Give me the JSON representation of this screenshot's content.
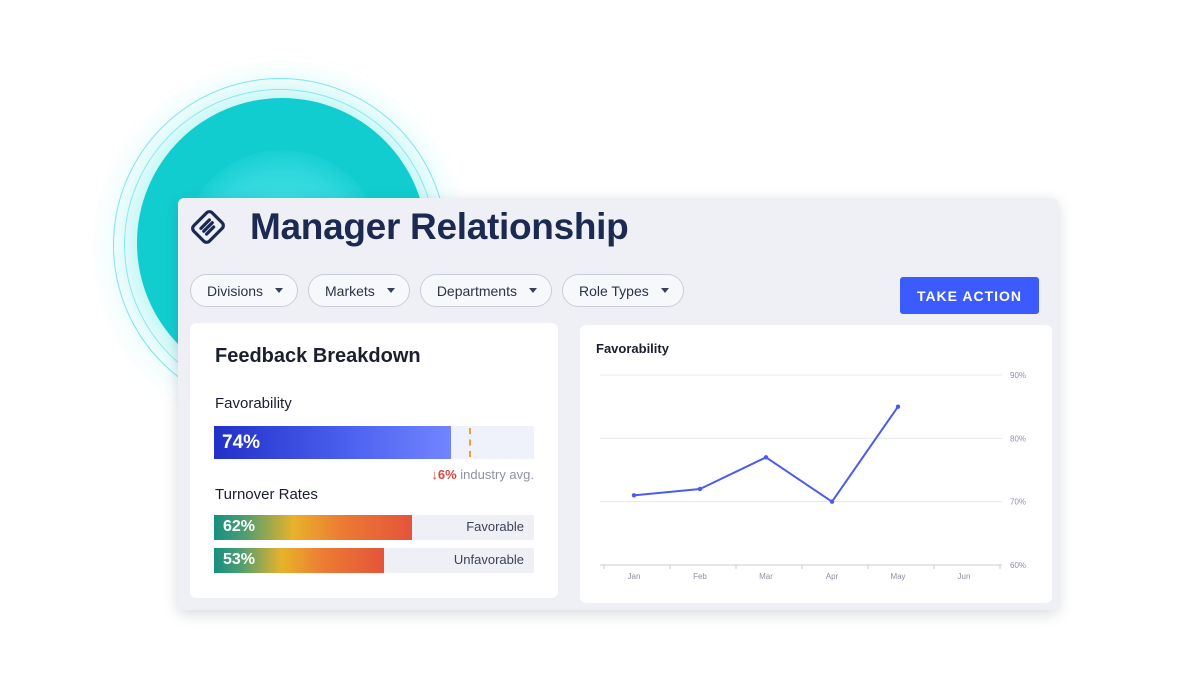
{
  "header": {
    "title": "Manager Relationship",
    "logo_icon": "handshake-icon"
  },
  "filters": [
    {
      "label": "Divisions"
    },
    {
      "label": "Markets"
    },
    {
      "label": "Departments"
    },
    {
      "label": "Role Types"
    }
  ],
  "take_action": {
    "label": "TAKE ACTION",
    "color": "#3b5bff"
  },
  "feedback": {
    "title": "Feedback Breakdown",
    "favorability_label": "Favorability",
    "favorability_value": "74%",
    "favorability_percent": 74,
    "industry_avg_percent": 80,
    "industry_delta": "↓6%",
    "industry_label": "industry avg.",
    "turnover_label": "Turnover Rates",
    "turnover": [
      {
        "value": "62%",
        "percent": 62,
        "label": "Favorable"
      },
      {
        "value": "53%",
        "percent": 53,
        "label": "Unfavorable"
      }
    ]
  },
  "chart_data": {
    "type": "line",
    "title": "Favorability",
    "categories": [
      "Jan",
      "Feb",
      "Mar",
      "Apr",
      "May",
      "Jun"
    ],
    "values": [
      71,
      72,
      77,
      70,
      85,
      null
    ],
    "ylim": [
      60,
      90
    ],
    "yticks": [
      "60%",
      "70%",
      "80%",
      "90%"
    ],
    "ytick_values": [
      60,
      70,
      80,
      90
    ],
    "y_axis_position": "right",
    "grid": true,
    "line_color": "#4a5cf0"
  }
}
